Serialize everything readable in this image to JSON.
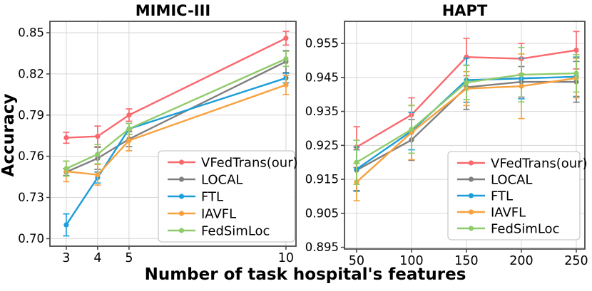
{
  "figure": {
    "xlabel": "Number of task hospital's features",
    "ylabel": "Accuracy",
    "background": "#ffffff",
    "spine_color": "#4a4a4a",
    "grid_color": "#d6d6d6",
    "tick_text_color": "#000000",
    "legend_border_color": "#c9c9c9",
    "legend_background": "#ffffff"
  },
  "chart_data": [
    {
      "type": "line",
      "title": "MIMIC-III",
      "xlabel": "Number of task hospital's features",
      "ylabel": "Accuracy",
      "grid": true,
      "legend_position": "lower right",
      "x": [
        3,
        4,
        5,
        10
      ],
      "xtick_labels": [
        "3",
        "4",
        "5",
        "10"
      ],
      "ytick_values": [
        0.7,
        0.73,
        0.76,
        0.79,
        0.82,
        0.85
      ],
      "ytick_labels": [
        "0.70",
        "0.73",
        "0.76",
        "0.79",
        "0.82",
        "0.85"
      ],
      "xlim": [
        2.48,
        10.32
      ],
      "ylim": [
        0.6945,
        0.8583
      ],
      "series": [
        {
          "name": "VFedTrans(our)",
          "color": "#f9696e",
          "y": [
            0.7735,
            0.7745,
            0.79,
            0.846
          ],
          "yerr": [
            0.004,
            0.0075,
            0.0045,
            0.005
          ]
        },
        {
          "name": "LOCAL",
          "color": "#7f7f7f",
          "y": [
            0.7485,
            0.7585,
            0.7725,
            0.829
          ],
          "yerr": [
            0.0025,
            0.008,
            0.0055,
            0.008
          ]
        },
        {
          "name": "FTL",
          "color": "#1b9ed9",
          "y": [
            0.71,
            0.7445,
            0.78,
            0.817
          ],
          "yerr": [
            0.008,
            0.004,
            0.004,
            0.0035
          ]
        },
        {
          "name": "IAVFL",
          "color": "#f9a13d",
          "y": [
            0.749,
            0.7465,
            0.7715,
            0.812
          ],
          "yerr": [
            0.0075,
            0.0075,
            0.0075,
            0.007
          ]
        },
        {
          "name": "FedSimLoc",
          "color": "#90cb6b",
          "y": [
            0.751,
            0.7615,
            0.78,
            0.831
          ],
          "yerr": [
            0.0055,
            0.007,
            0.004,
            0.0055
          ]
        }
      ]
    },
    {
      "type": "line",
      "title": "HAPT",
      "xlabel": "Number of task hospital's features",
      "ylabel": "Accuracy",
      "grid": true,
      "legend_position": "lower right",
      "x": [
        50,
        100,
        150,
        200,
        250
      ],
      "xtick_labels": [
        "50",
        "100",
        "150",
        "200",
        "250"
      ],
      "ytick_values": [
        0.895,
        0.905,
        0.915,
        0.925,
        0.935,
        0.945,
        0.955
      ],
      "ytick_labels": [
        "0.895",
        "0.905",
        "0.915",
        "0.925",
        "0.935",
        "0.945",
        "0.955"
      ],
      "xlim": [
        39,
        257.8
      ],
      "ylim": [
        0.8945,
        0.9615
      ],
      "series": [
        {
          "name": "VFedTrans(our)",
          "color": "#f9696e",
          "y": [
            0.9245,
            0.934,
            0.951,
            0.9505,
            0.953
          ],
          "yerr": [
            0.006,
            0.005,
            0.0055,
            0.0045,
            0.0055
          ]
        },
        {
          "name": "LOCAL",
          "color": "#7f7f7f",
          "y": [
            0.9177,
            0.9266,
            0.9421,
            0.9437,
            0.9437
          ],
          "yerr": [
            0.006,
            0.006,
            0.0065,
            0.0045,
            0.006
          ]
        },
        {
          "name": "FTL",
          "color": "#1b9ed9",
          "y": [
            0.918,
            0.9292,
            0.9442,
            0.9447,
            0.9452
          ],
          "yerr": [
            0.0065,
            0.0055,
            0.0065,
            0.006,
            0.0058
          ]
        },
        {
          "name": "IAVFL",
          "color": "#f9a13d",
          "y": [
            0.9142,
            0.9288,
            0.9417,
            0.9424,
            0.9448
          ],
          "yerr": [
            0.0055,
            0.008,
            0.005,
            0.0095,
            0.0058
          ]
        },
        {
          "name": "FedSimLoc",
          "color": "#90cb6b",
          "y": [
            0.92,
            0.9297,
            0.9435,
            0.9458,
            0.9462
          ],
          "yerr": [
            0.0065,
            0.007,
            0.005,
            0.008,
            0.0055
          ]
        }
      ]
    }
  ]
}
